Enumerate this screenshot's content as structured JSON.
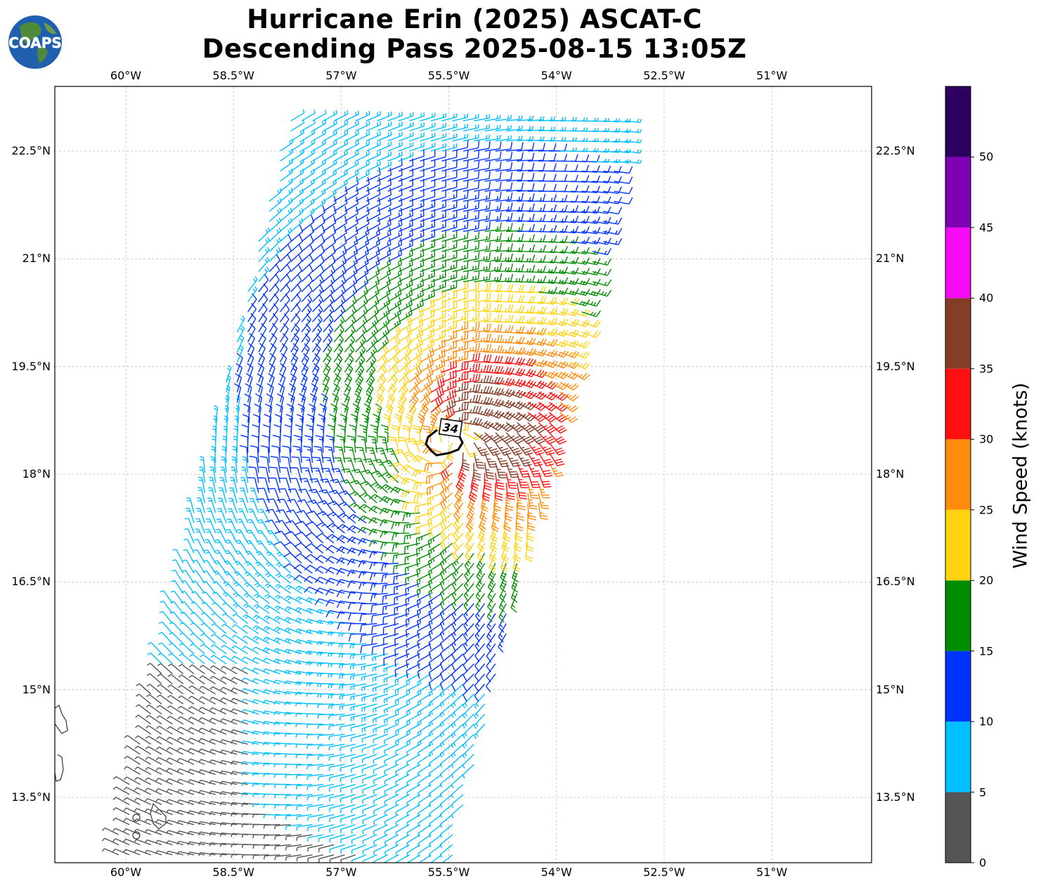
{
  "title": {
    "line1": "Hurricane Erin (2025) ASCAT-C",
    "line2": "Descending Pass 2025-08-15 13:05Z"
  },
  "logo": {
    "text": "COAPS",
    "icon": "globe-icon"
  },
  "map": {
    "lon_range": [
      -60.65,
      -52.45
    ],
    "lat_range": [
      12.6,
      23.4
    ],
    "grid": true,
    "lon_ticks": [
      {
        "value": -60.0,
        "label": "60°W"
      },
      {
        "value": -58.5,
        "label": "58.5°W"
      },
      {
        "value": -57.0,
        "label": "57°W"
      },
      {
        "value": -55.5,
        "label": "55.5°W"
      },
      {
        "value": -54.0,
        "label": "54°W"
      },
      {
        "value": -52.5,
        "label": "52.5°W"
      },
      {
        "value": -51.0,
        "label": "51°W"
      }
    ],
    "lat_ticks": [
      {
        "value": 22.5,
        "label": "22.5°N"
      },
      {
        "value": 21.0,
        "label": "21°N"
      },
      {
        "value": 19.5,
        "label": "19.5°N"
      },
      {
        "value": 18.0,
        "label": "18°N"
      },
      {
        "value": 16.5,
        "label": "16.5°N"
      },
      {
        "value": 15.0,
        "label": "15°N"
      },
      {
        "value": 13.5,
        "label": "13.5°N"
      }
    ],
    "storm_center": {
      "lon": -55.45,
      "lat": 18.5
    },
    "contour": {
      "label": "34",
      "level_knots": 34,
      "color": "#000000"
    }
  },
  "colorbar": {
    "label": "Wind Speed (knots)",
    "bins": [
      {
        "min": 0,
        "max": 5,
        "color": "#555555"
      },
      {
        "min": 5,
        "max": 10,
        "color": "#00bfff"
      },
      {
        "min": 10,
        "max": 15,
        "color": "#0033ff"
      },
      {
        "min": 15,
        "max": 20,
        "color": "#008c00"
      },
      {
        "min": 20,
        "max": 25,
        "color": "#ffd30f"
      },
      {
        "min": 25,
        "max": 30,
        "color": "#ff8c0a"
      },
      {
        "min": 30,
        "max": 35,
        "color": "#ff0f0f"
      },
      {
        "min": 35,
        "max": 40,
        "color": "#853d27"
      },
      {
        "min": 40,
        "max": 45,
        "color": "#f50af5"
      },
      {
        "min": 45,
        "max": 50,
        "color": "#8000b3"
      },
      {
        "min": 50,
        "max": 55,
        "color": "#2d0060"
      }
    ],
    "tick_labels": [
      "0",
      "5",
      "10",
      "15",
      "20",
      "25",
      "30",
      "35",
      "40",
      "45",
      "50"
    ]
  }
}
